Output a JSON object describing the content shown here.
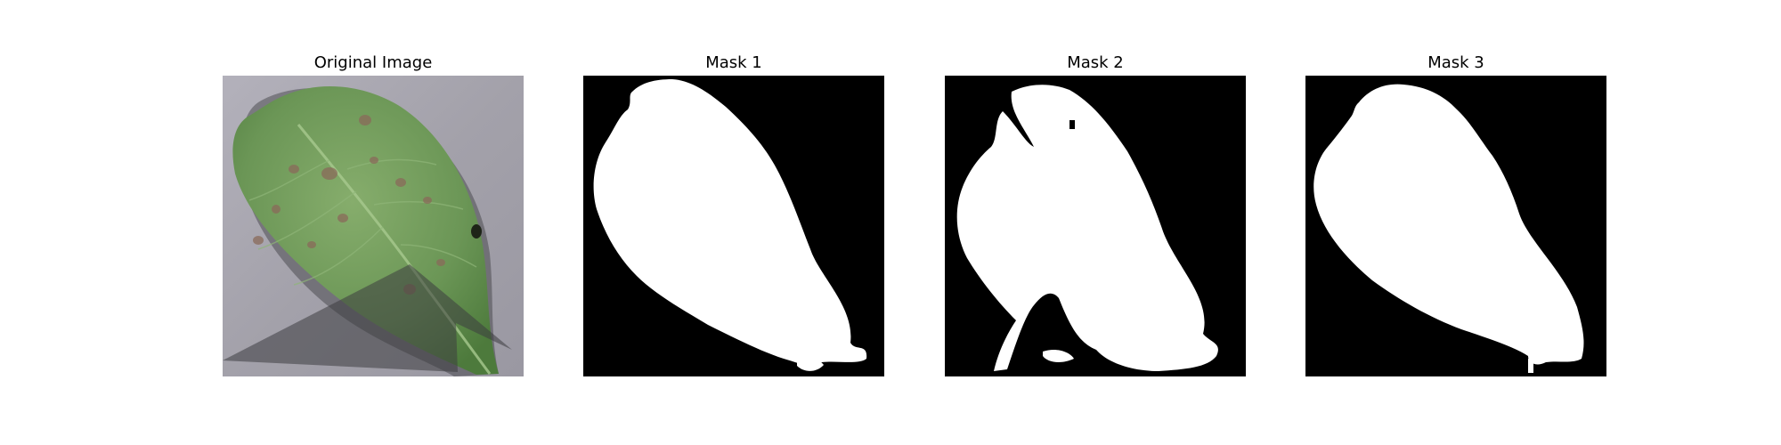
{
  "panels": [
    {
      "title": "Original Image"
    },
    {
      "title": "Mask 1"
    },
    {
      "title": "Mask 2"
    },
    {
      "title": "Mask 3"
    }
  ],
  "colors": {
    "background_photo": "#a7a5ae",
    "leaf": "#6e9a58",
    "leaf_dark": "#4f7a3e",
    "spot": "#8a6a5a",
    "shadow_overlay": "#3d3d40",
    "mask_background": "#000000",
    "mask_foreground": "#ffffff"
  }
}
